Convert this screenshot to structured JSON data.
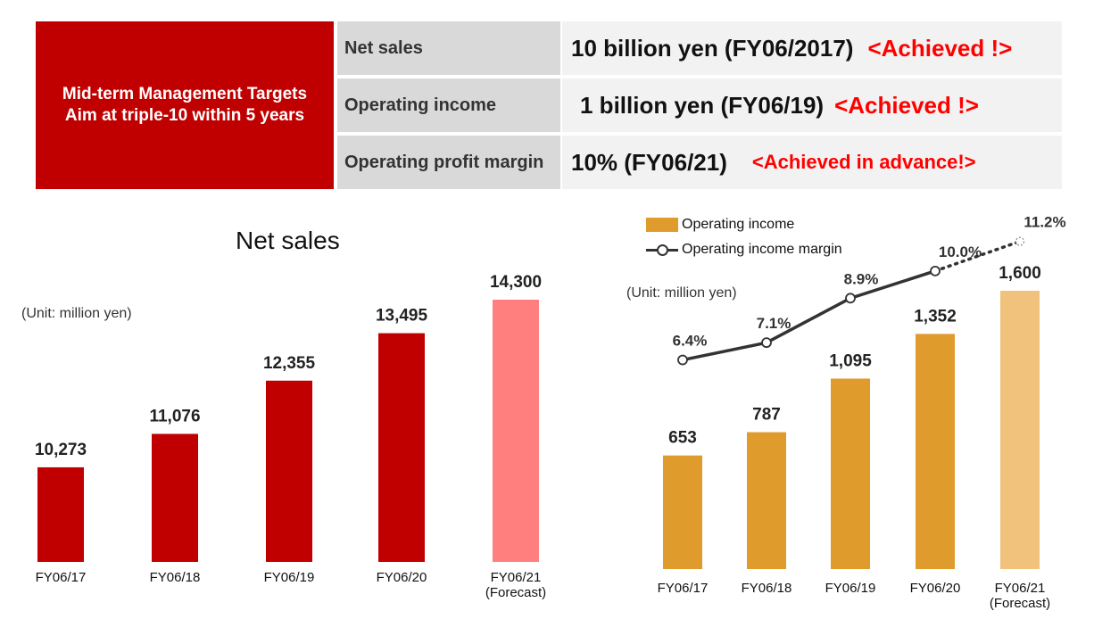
{
  "targets": {
    "header_line1": "Mid-term Management Targets",
    "header_line2": "Aim at triple-10 within 5 years",
    "rows": [
      {
        "label": "Net sales",
        "value": "10 billion yen (FY06/2017)",
        "status": "<Achieved !>"
      },
      {
        "label": "Operating income",
        "value": "1 billion yen (FY06/19)",
        "status": "<Achieved !>"
      },
      {
        "label": "Operating profit margin",
        "value": "10%  (FY06/21)",
        "status": "<Achieved in advance!>"
      }
    ]
  },
  "left_chart": {
    "title": "Net sales",
    "unit": "(Unit: million yen)"
  },
  "right_chart": {
    "unit": "(Unit: million yen)",
    "legend": [
      "Operating income",
      "Operating income margin"
    ]
  },
  "colors": {
    "brand_red": "#c00000",
    "forecast_pink": "#ff7f7f",
    "income_orange": "#e09b2d",
    "forecast_orange": "#f0c27b",
    "line": "#333333",
    "status_red": "#ff0000"
  },
  "chart_data": [
    {
      "type": "bar",
      "title": "Net sales",
      "categories": [
        [
          "FY06/17"
        ],
        [
          "FY06/18"
        ],
        [
          "FY06/19"
        ],
        [
          "FY06/20"
        ],
        [
          "FY06/21",
          "(Forecast)"
        ]
      ],
      "values": [
        10273,
        11076,
        12355,
        13495,
        14300
      ],
      "value_labels": [
        "10,273",
        "11,076",
        "12,355",
        "13,495",
        "14,300"
      ],
      "forecast_index": 4,
      "ylim": [
        8000,
        14600
      ]
    },
    {
      "type": "bar",
      "categories": [
        [
          "FY06/17"
        ],
        [
          "FY06/18"
        ],
        [
          "FY06/19"
        ],
        [
          "FY06/20"
        ],
        [
          "FY06/21",
          "(Forecast)"
        ]
      ],
      "series": [
        {
          "name": "Operating income",
          "values": [
            653,
            787,
            1095,
            1352,
            1600
          ],
          "value_labels": [
            "653",
            "787",
            "1,095",
            "1,352",
            "1,600"
          ]
        },
        {
          "name": "Operating income margin",
          "type": "line",
          "values": [
            6.4,
            7.1,
            8.9,
            10.0,
            11.2
          ],
          "value_labels": [
            "6.4%",
            "7.1%",
            "8.9%",
            "10.0%",
            "11.2%"
          ]
        }
      ],
      "forecast_index": 4,
      "ylim": [
        0,
        1600
      ],
      "y2lim": [
        4.0,
        11.8
      ]
    }
  ]
}
